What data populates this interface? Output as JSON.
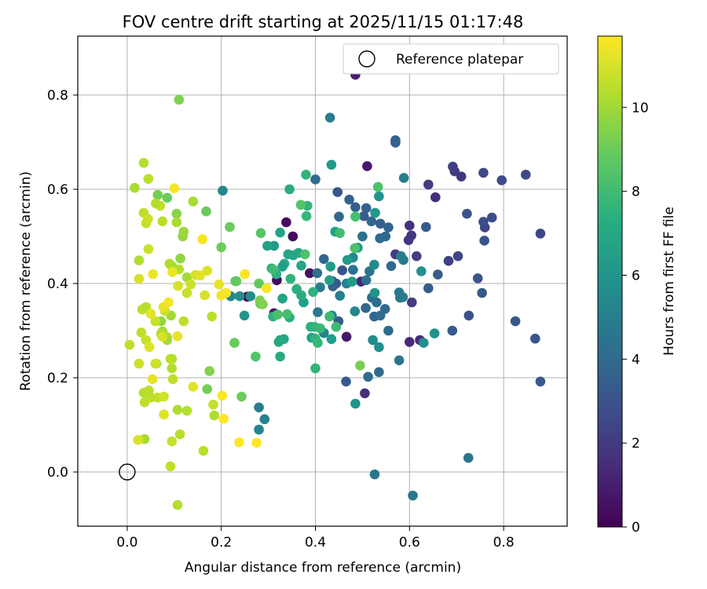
{
  "chart_data": {
    "type": "scatter",
    "title": "FOV centre drift starting at 2025/11/15 01:17:48",
    "xlabel": "Angular distance from reference (arcmin)",
    "ylabel": "Rotation from reference (arcmin)",
    "xlim": [
      -0.105,
      0.935
    ],
    "ylim": [
      -0.115,
      0.925
    ],
    "xticks": [
      0.0,
      0.2,
      0.4,
      0.6,
      0.8
    ],
    "yticks": [
      0.0,
      0.2,
      0.4,
      0.6,
      0.8
    ],
    "xtick_labels": [
      "0.0",
      "0.2",
      "0.4",
      "0.6",
      "0.8"
    ],
    "ytick_labels": [
      "0.0",
      "0.2",
      "0.4",
      "0.6",
      "0.8"
    ],
    "grid": true,
    "legend": {
      "location": "top-right",
      "entries": [
        "Reference platepar"
      ]
    },
    "reference_point": {
      "x": 0.0,
      "y": 0.0,
      "label": "Reference platepar"
    },
    "colorbar": {
      "label": "Hours from first FF file",
      "min": 0,
      "max": 11.7,
      "ticks": [
        0,
        2,
        4,
        6,
        8,
        10
      ],
      "tick_labels": [
        "0",
        "2",
        "4",
        "6",
        "8",
        "10"
      ],
      "colormap": "viridis"
    },
    "points": [
      [
        0.485,
        0.843,
        1.0
      ],
      [
        0.51,
        0.649,
        0.8
      ],
      [
        0.352,
        0.5,
        0.3
      ],
      [
        0.338,
        0.53,
        0.4
      ],
      [
        0.388,
        0.422,
        0.5
      ],
      [
        0.318,
        0.407,
        0.4
      ],
      [
        0.255,
        0.372,
        0.3
      ],
      [
        0.312,
        0.337,
        0.6
      ],
      [
        0.466,
        0.287,
        0.8
      ],
      [
        0.497,
        0.404,
        1.2
      ],
      [
        0.6,
        0.276,
        1.3
      ],
      [
        0.622,
        0.28,
        1.4
      ],
      [
        0.655,
        0.583,
        1.5
      ],
      [
        0.505,
        0.167,
        1.6
      ],
      [
        0.6,
        0.523,
        1.7
      ],
      [
        0.598,
        0.492,
        1.8
      ],
      [
        0.604,
        0.502,
        1.9
      ],
      [
        0.57,
        0.462,
        2.0
      ],
      [
        0.605,
        0.36,
        2.1
      ],
      [
        0.615,
        0.458,
        2.2
      ],
      [
        0.64,
        0.61,
        2.0
      ],
      [
        0.71,
        0.627,
        1.9
      ],
      [
        0.692,
        0.648,
        2.2
      ],
      [
        0.696,
        0.638,
        2.1
      ],
      [
        0.683,
        0.448,
        2.3
      ],
      [
        0.703,
        0.458,
        2.4
      ],
      [
        0.757,
        0.635,
        2.5
      ],
      [
        0.796,
        0.619,
        2.6
      ],
      [
        0.76,
        0.519,
        2.4
      ],
      [
        0.775,
        0.54,
        2.7
      ],
      [
        0.757,
        0.531,
        2.8
      ],
      [
        0.722,
        0.548,
        2.9
      ],
      [
        0.847,
        0.631,
        2.6
      ],
      [
        0.878,
        0.506,
        2.5
      ],
      [
        0.759,
        0.491,
        3.0
      ],
      [
        0.745,
        0.411,
        3.1
      ],
      [
        0.754,
        0.38,
        3.2
      ],
      [
        0.726,
        0.332,
        3.0
      ],
      [
        0.691,
        0.3,
        3.3
      ],
      [
        0.825,
        0.32,
        3.2
      ],
      [
        0.867,
        0.283,
        3.1
      ],
      [
        0.878,
        0.192,
        3.2
      ],
      [
        0.635,
        0.52,
        3.3
      ],
      [
        0.66,
        0.419,
        3.4
      ],
      [
        0.64,
        0.39,
        3.4
      ],
      [
        0.57,
        0.704,
        3.6
      ],
      [
        0.57,
        0.699,
        3.6
      ],
      [
        0.447,
        0.594,
        3.1
      ],
      [
        0.465,
        0.192,
        3.3
      ],
      [
        0.449,
        0.32,
        3.4
      ],
      [
        0.457,
        0.428,
        3.0
      ],
      [
        0.444,
        0.4,
        3.2
      ],
      [
        0.437,
        0.394,
        3.5
      ],
      [
        0.436,
        0.405,
        3.3
      ],
      [
        0.418,
        0.452,
        3.8
      ],
      [
        0.45,
        0.542,
        3.9
      ],
      [
        0.472,
        0.578,
        3.7
      ],
      [
        0.485,
        0.562,
        3.5
      ],
      [
        0.503,
        0.543,
        3.4
      ],
      [
        0.508,
        0.56,
        3.6
      ],
      [
        0.519,
        0.532,
        3.8
      ],
      [
        0.538,
        0.527,
        3.6
      ],
      [
        0.555,
        0.519,
        3.7
      ],
      [
        0.549,
        0.5,
        3.9
      ],
      [
        0.537,
        0.496,
        4.0
      ],
      [
        0.561,
        0.437,
        4.0
      ],
      [
        0.548,
        0.346,
        3.9
      ],
      [
        0.555,
        0.3,
        4.1
      ],
      [
        0.525,
        0.33,
        3.8
      ],
      [
        0.52,
        0.37,
        4.2
      ],
      [
        0.507,
        0.348,
        4.0
      ],
      [
        0.53,
        0.36,
        4.1
      ],
      [
        0.538,
        0.332,
        4.2
      ],
      [
        0.508,
        0.407,
        4.3
      ],
      [
        0.515,
        0.426,
        4.4
      ],
      [
        0.48,
        0.429,
        4.4
      ],
      [
        0.5,
        0.5,
        4.3
      ],
      [
        0.535,
        0.212,
        4.0
      ],
      [
        0.512,
        0.202,
        4.1
      ],
      [
        0.526,
        -0.005,
        4.6
      ],
      [
        0.607,
        -0.05,
        4.7
      ],
      [
        0.725,
        0.03,
        4.6
      ],
      [
        0.578,
        0.237,
        4.5
      ],
      [
        0.58,
        0.37,
        4.5
      ],
      [
        0.586,
        0.371,
        4.9
      ],
      [
        0.578,
        0.381,
        4.8
      ],
      [
        0.587,
        0.45,
        4.8
      ],
      [
        0.582,
        0.458,
        4.9
      ],
      [
        0.588,
        0.624,
        5.0
      ],
      [
        0.431,
        0.752,
        5.0
      ],
      [
        0.405,
        0.339,
        4.7
      ],
      [
        0.404,
        0.422,
        4.3
      ],
      [
        0.41,
        0.392,
        4.9
      ],
      [
        0.452,
        0.374,
        5.0
      ],
      [
        0.435,
        0.332,
        5.1
      ],
      [
        0.418,
        0.295,
        5.2
      ],
      [
        0.484,
        0.341,
        5.4
      ],
      [
        0.48,
        0.455,
        5.5
      ],
      [
        0.466,
        0.4,
        5.3
      ],
      [
        0.525,
        0.44,
        5.6
      ],
      [
        0.522,
        0.28,
        5.7
      ],
      [
        0.535,
        0.265,
        5.8
      ],
      [
        0.63,
        0.274,
        5.9
      ],
      [
        0.625,
        0.426,
        5.9
      ],
      [
        0.653,
        0.294,
        6.0
      ],
      [
        0.526,
        0.38,
        6.1
      ],
      [
        0.535,
        0.585,
        6.0
      ],
      [
        0.527,
        0.55,
        6.2
      ],
      [
        0.4,
        0.621,
        4.0
      ],
      [
        0.434,
        0.652,
        6.3
      ],
      [
        0.468,
        0.45,
        6.4
      ],
      [
        0.49,
        0.476,
        6.3
      ],
      [
        0.478,
        0.404,
        6.5
      ],
      [
        0.432,
        0.436,
        6.4
      ],
      [
        0.434,
        0.282,
        6.5
      ],
      [
        0.43,
        0.407,
        6.6
      ],
      [
        0.442,
        0.51,
        6.7
      ],
      [
        0.392,
        0.285,
        6.5
      ],
      [
        0.375,
        0.36,
        6.6
      ],
      [
        0.342,
        0.462,
        6.8
      ],
      [
        0.353,
        0.46,
        6.9
      ],
      [
        0.364,
        0.465,
        7.0
      ],
      [
        0.37,
        0.438,
        6.9
      ],
      [
        0.334,
        0.442,
        7.0
      ],
      [
        0.325,
        0.508,
        6.8
      ],
      [
        0.33,
        0.436,
        6.6
      ],
      [
        0.33,
        0.368,
        6.7
      ],
      [
        0.325,
        0.28,
        6.8
      ],
      [
        0.333,
        0.282,
        6.9
      ],
      [
        0.322,
        0.276,
        7.0
      ],
      [
        0.325,
        0.245,
        7.1
      ],
      [
        0.345,
        0.6,
        7.2
      ],
      [
        0.36,
        0.388,
        7.3
      ],
      [
        0.37,
        0.375,
        7.2
      ],
      [
        0.345,
        0.328,
        7.3
      ],
      [
        0.28,
        0.137,
        5.0
      ],
      [
        0.292,
        0.112,
        5.2
      ],
      [
        0.28,
        0.09,
        5.3
      ],
      [
        0.203,
        0.597,
        5.4
      ],
      [
        0.22,
        0.373,
        5.5
      ],
      [
        0.262,
        0.373,
        5.6
      ],
      [
        0.239,
        0.373,
        5.7
      ],
      [
        0.249,
        0.332,
        6.0
      ],
      [
        0.312,
        0.48,
        6.4
      ],
      [
        0.298,
        0.48,
        6.7
      ],
      [
        0.307,
        0.432,
        7.0
      ],
      [
        0.317,
        0.42,
        7.4
      ],
      [
        0.31,
        0.33,
        7.5
      ],
      [
        0.347,
        0.41,
        7.6
      ],
      [
        0.383,
        0.565,
        7.7
      ],
      [
        0.381,
        0.543,
        7.8
      ],
      [
        0.38,
        0.631,
        7.6
      ],
      [
        0.395,
        0.382,
        7.5
      ],
      [
        0.39,
        0.308,
        7.4
      ],
      [
        0.398,
        0.308,
        7.6
      ],
      [
        0.4,
        0.283,
        7.7
      ],
      [
        0.4,
        0.22,
        7.6
      ],
      [
        0.405,
        0.274,
        7.8
      ],
      [
        0.41,
        0.305,
        7.9
      ],
      [
        0.444,
        0.308,
        8.0
      ],
      [
        0.43,
        0.33,
        8.0
      ],
      [
        0.452,
        0.507,
        8.1
      ],
      [
        0.485,
        0.542,
        8.2
      ],
      [
        0.484,
        0.475,
        8.4
      ],
      [
        0.485,
        0.145,
        6.1
      ],
      [
        0.533,
        0.605,
        8.4
      ],
      [
        0.369,
        0.567,
        8.5
      ],
      [
        0.378,
        0.462,
        8.4
      ],
      [
        0.34,
        0.335,
        8.2
      ],
      [
        0.32,
        0.334,
        8.3
      ],
      [
        0.31,
        0.43,
        8.1
      ],
      [
        0.284,
        0.507,
        8.6
      ],
      [
        0.283,
        0.357,
        8.7
      ],
      [
        0.28,
        0.4,
        8.8
      ],
      [
        0.273,
        0.245,
        8.5
      ],
      [
        0.228,
        0.274,
        8.9
      ],
      [
        0.23,
        0.405,
        8.6
      ],
      [
        0.232,
        0.405,
        8.8
      ],
      [
        0.218,
        0.52,
        9.0
      ],
      [
        0.2,
        0.477,
        9.1
      ],
      [
        0.282,
        0.364,
        9.4
      ],
      [
        0.288,
        0.356,
        9.5
      ],
      [
        0.243,
        0.16,
        9.1
      ],
      [
        0.168,
        0.553,
        9.0
      ],
      [
        0.17,
        0.176,
        9.2
      ],
      [
        0.175,
        0.214,
        9.5
      ],
      [
        0.495,
        0.226,
        9.3
      ],
      [
        0.11,
        0.79,
        9.4
      ],
      [
        0.065,
        0.588,
        9.2
      ],
      [
        0.085,
        0.582,
        9.0
      ],
      [
        0.105,
        0.548,
        9.6
      ],
      [
        0.113,
        0.453,
        9.7
      ],
      [
        0.118,
        0.5,
        9.8
      ],
      [
        0.12,
        0.51,
        10.0
      ],
      [
        0.127,
        0.413,
        10.1
      ],
      [
        0.14,
        0.574,
        10.2
      ],
      [
        0.095,
        0.437,
        10.0
      ],
      [
        0.09,
        0.442,
        10.3
      ],
      [
        0.105,
        0.53,
        10.2
      ],
      [
        0.072,
        0.32,
        9.8
      ],
      [
        0.062,
        0.23,
        9.9
      ],
      [
        0.075,
        0.298,
        10.0
      ],
      [
        0.093,
        0.332,
        10.1
      ],
      [
        0.085,
        0.286,
        10.3
      ],
      [
        0.095,
        0.24,
        10.2
      ],
      [
        0.095,
        0.22,
        10.4
      ],
      [
        0.085,
        0.28,
        10.1
      ],
      [
        0.097,
        0.197,
        10.6
      ],
      [
        0.092,
        0.24,
        10.5
      ],
      [
        0.065,
        0.158,
        10.7
      ],
      [
        0.072,
        0.293,
        10.4
      ],
      [
        0.075,
        0.532,
        10.5
      ],
      [
        0.07,
        0.565,
        10.6
      ],
      [
        0.061,
        0.57,
        10.4
      ],
      [
        0.035,
        0.55,
        10.6
      ],
      [
        0.045,
        0.622,
        10.5
      ],
      [
        0.035,
        0.656,
        10.4
      ],
      [
        0.016,
        0.603,
        10.2
      ],
      [
        0.025,
        0.449,
        10.3
      ],
      [
        0.04,
        0.528,
        10.7
      ],
      [
        0.044,
        0.537,
        10.8
      ],
      [
        0.045,
        0.473,
        10.8
      ],
      [
        0.032,
        0.345,
        10.6
      ],
      [
        0.04,
        0.35,
        10.4
      ],
      [
        0.03,
        0.296,
        10.6
      ],
      [
        0.04,
        0.28,
        10.8
      ],
      [
        0.035,
        0.168,
        10.4
      ],
      [
        0.037,
        0.148,
        10.6
      ],
      [
        0.05,
        0.158,
        10.6
      ],
      [
        0.046,
        0.173,
        10.5
      ],
      [
        0.025,
        0.23,
        10.8
      ],
      [
        0.06,
        0.23,
        10.9
      ],
      [
        0.06,
        0.32,
        10.8
      ],
      [
        0.08,
        0.342,
        10.8
      ],
      [
        0.075,
        0.287,
        11.0
      ],
      [
        0.108,
        0.395,
        11.0
      ],
      [
        0.12,
        0.32,
        10.6
      ],
      [
        0.11,
        0.43,
        10.4
      ],
      [
        0.127,
        0.13,
        10.4
      ],
      [
        0.107,
        0.132,
        10.3
      ],
      [
        0.112,
        0.08,
        10.5
      ],
      [
        0.095,
        0.065,
        10.7
      ],
      [
        0.092,
        0.012,
        10.6
      ],
      [
        0.037,
        0.07,
        10.2
      ],
      [
        0.107,
        -0.07,
        10.4
      ],
      [
        0.135,
        0.398,
        10.8
      ],
      [
        0.127,
        0.38,
        10.7
      ],
      [
        0.145,
        0.418,
        11.0
      ],
      [
        0.155,
        0.417,
        11.2
      ],
      [
        0.165,
        0.375,
        11.0
      ],
      [
        0.17,
        0.427,
        11.1
      ],
      [
        0.18,
        0.33,
        10.5
      ],
      [
        0.185,
        0.12,
        10.3
      ],
      [
        0.183,
        0.143,
        10.7
      ],
      [
        0.162,
        0.045,
        10.5
      ],
      [
        0.023,
        0.068,
        11.0
      ],
      [
        0.005,
        0.27,
        10.6
      ],
      [
        0.025,
        0.41,
        11.0
      ],
      [
        0.047,
        0.265,
        11.1
      ],
      [
        0.05,
        0.336,
        11.2
      ],
      [
        0.055,
        0.42,
        11.4
      ],
      [
        0.054,
        0.197,
        11.3
      ],
      [
        0.078,
        0.122,
        11.1
      ],
      [
        0.077,
        0.35,
        11.3
      ],
      [
        0.088,
        0.36,
        11.5
      ],
      [
        0.1,
        0.602,
        11.6
      ],
      [
        0.096,
        0.424,
        11.4
      ],
      [
        0.107,
        0.288,
        11.3
      ],
      [
        0.14,
        0.181,
        11.2
      ],
      [
        0.16,
        0.494,
        11.6
      ],
      [
        0.195,
        0.398,
        11.3
      ],
      [
        0.2,
        0.375,
        11.5
      ],
      [
        0.21,
        0.38,
        11.6
      ],
      [
        0.25,
        0.42,
        11.6
      ],
      [
        0.202,
        0.162,
        11.6
      ],
      [
        0.205,
        0.113,
        11.7
      ],
      [
        0.238,
        0.063,
        11.7
      ],
      [
        0.275,
        0.062,
        11.7
      ],
      [
        0.296,
        0.39,
        11.6
      ],
      [
        0.078,
        0.16,
        10.9
      ]
    ]
  }
}
